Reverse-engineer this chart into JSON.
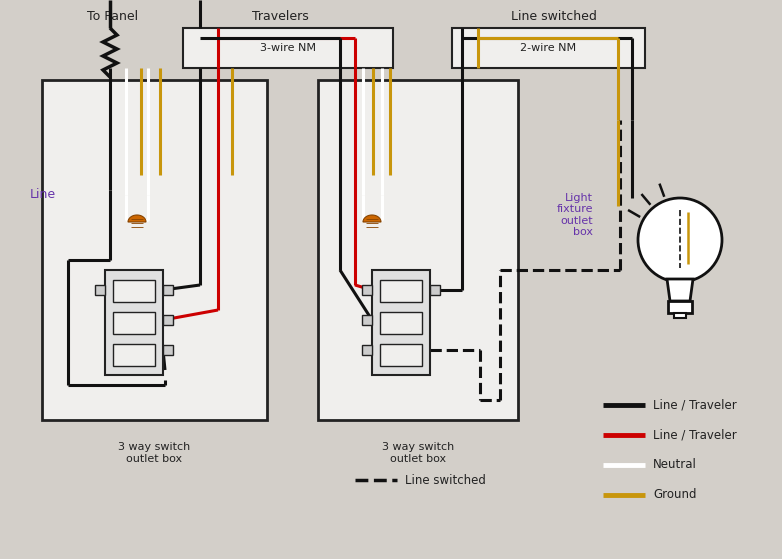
{
  "bg_color": "#d3cfc9",
  "box_color": "#f0efed",
  "box_edge": "#222222",
  "wire_black": "#111111",
  "wire_red": "#cc0000",
  "wire_white": "#ffffff",
  "wire_gold": "#c8960c",
  "text_color": "#222222",
  "legend_black_label": "Line / Traveler",
  "legend_red_label": "Line / Traveler",
  "legend_white_label": "Neutral",
  "legend_gold_label": "Ground",
  "label_to_panel": "To Panel",
  "label_travelers": "Travelers",
  "label_line_switched": "Line switched",
  "label_3wire": "3-wire NM",
  "label_2wire": "2-wire NM",
  "label_line": "Line",
  "label_box1": "3 way switch\noutlet box",
  "label_box2": "3 way switch\noutlet box",
  "label_fixture": "Light\nfixture\noutlet\nbox",
  "label_line_sw": "Line switched",
  "figsize": [
    7.82,
    5.59
  ],
  "dpi": 100
}
